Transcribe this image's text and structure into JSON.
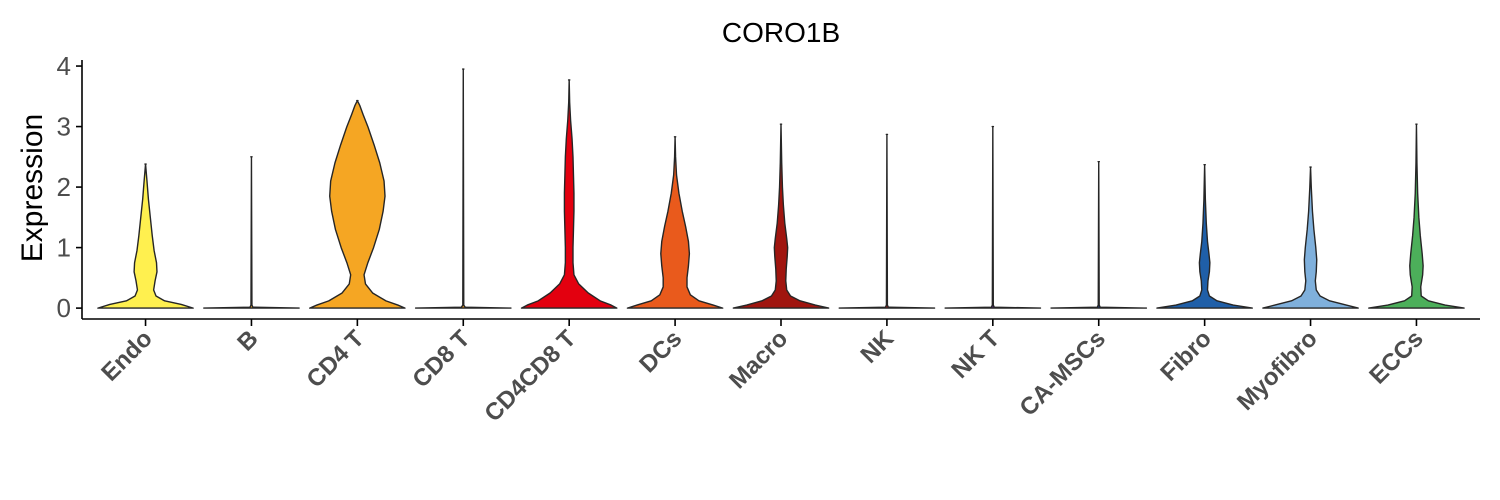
{
  "chart_data": {
    "type": "violin",
    "title": "CORO1B",
    "xlabel": "",
    "ylabel": "Expression",
    "ylim": [
      -0.18,
      4.1
    ],
    "yticks": [
      0,
      1,
      2,
      3,
      4
    ],
    "grid": false,
    "legend": "none",
    "categories": [
      "Endo",
      "B",
      "CD4 T",
      "CD8 T",
      "CD4CD8 T",
      "DCs",
      "Macro",
      "NK",
      "NK T",
      "CA-MSCs",
      "Fibro",
      "Myofibro",
      "ECCs"
    ],
    "colors": [
      "#FFF04F",
      "#F5A623",
      "#F5A623",
      "#E8961E",
      "#E3000F",
      "#E95A1C",
      "#A0150F",
      "#B5181A",
      "#5B2B86",
      "#1F3B86",
      "#1F5FA8",
      "#7FB0DC",
      "#4CAF5A"
    ],
    "violins": [
      {
        "name": "Endo",
        "max": 2.38,
        "profile": [
          [
            0,
            1
          ],
          [
            0.06,
            0.75
          ],
          [
            0.12,
            0.4
          ],
          [
            0.2,
            0.22
          ],
          [
            0.3,
            0.17
          ],
          [
            0.45,
            0.2
          ],
          [
            0.6,
            0.24
          ],
          [
            0.75,
            0.23
          ],
          [
            0.95,
            0.18
          ],
          [
            1.2,
            0.14
          ],
          [
            1.5,
            0.1
          ],
          [
            1.8,
            0.06
          ],
          [
            2.1,
            0.03
          ],
          [
            2.38,
            0
          ]
        ]
      },
      {
        "name": "B",
        "max": 2.5,
        "profile": [
          [
            0,
            1
          ],
          [
            0.015,
            0.03
          ],
          [
            0.05,
            0.01
          ],
          [
            2.5,
            0
          ]
        ]
      },
      {
        "name": "CD4 T",
        "max": 3.43,
        "profile": [
          [
            0,
            1
          ],
          [
            0.05,
            0.85
          ],
          [
            0.12,
            0.6
          ],
          [
            0.25,
            0.32
          ],
          [
            0.4,
            0.17
          ],
          [
            0.55,
            0.14
          ],
          [
            0.75,
            0.22
          ],
          [
            1.0,
            0.34
          ],
          [
            1.3,
            0.46
          ],
          [
            1.6,
            0.54
          ],
          [
            1.85,
            0.58
          ],
          [
            2.1,
            0.56
          ],
          [
            2.4,
            0.47
          ],
          [
            2.7,
            0.35
          ],
          [
            3.0,
            0.22
          ],
          [
            3.2,
            0.12
          ],
          [
            3.35,
            0.05
          ],
          [
            3.43,
            0
          ]
        ]
      },
      {
        "name": "CD8 T",
        "max": 3.95,
        "profile": [
          [
            0,
            1
          ],
          [
            0.015,
            0.04
          ],
          [
            0.05,
            0.01
          ],
          [
            3.95,
            0
          ]
        ]
      },
      {
        "name": "CD4CD8 T",
        "max": 3.77,
        "profile": [
          [
            0,
            1
          ],
          [
            0.05,
            0.88
          ],
          [
            0.12,
            0.65
          ],
          [
            0.25,
            0.4
          ],
          [
            0.4,
            0.2
          ],
          [
            0.55,
            0.1
          ],
          [
            0.75,
            0.08
          ],
          [
            1.0,
            0.08
          ],
          [
            1.3,
            0.09
          ],
          [
            1.6,
            0.1
          ],
          [
            1.9,
            0.1
          ],
          [
            2.2,
            0.09
          ],
          [
            2.5,
            0.08
          ],
          [
            2.8,
            0.06
          ],
          [
            3.1,
            0.03
          ],
          [
            3.4,
            0.01
          ],
          [
            3.77,
            0
          ]
        ]
      },
      {
        "name": "DCs",
        "max": 2.83,
        "profile": [
          [
            0,
            1
          ],
          [
            0.05,
            0.8
          ],
          [
            0.12,
            0.5
          ],
          [
            0.22,
            0.32
          ],
          [
            0.35,
            0.25
          ],
          [
            0.5,
            0.25
          ],
          [
            0.7,
            0.28
          ],
          [
            0.9,
            0.3
          ],
          [
            1.1,
            0.28
          ],
          [
            1.35,
            0.22
          ],
          [
            1.6,
            0.15
          ],
          [
            1.9,
            0.08
          ],
          [
            2.2,
            0.03
          ],
          [
            2.5,
            0.01
          ],
          [
            2.83,
            0
          ]
        ]
      },
      {
        "name": "Macro",
        "max": 3.04,
        "profile": [
          [
            0,
            1
          ],
          [
            0.05,
            0.72
          ],
          [
            0.12,
            0.4
          ],
          [
            0.2,
            0.2
          ],
          [
            0.3,
            0.12
          ],
          [
            0.45,
            0.1
          ],
          [
            0.65,
            0.11
          ],
          [
            0.85,
            0.13
          ],
          [
            1.0,
            0.14
          ],
          [
            1.15,
            0.12
          ],
          [
            1.4,
            0.08
          ],
          [
            1.7,
            0.05
          ],
          [
            2.0,
            0.03
          ],
          [
            2.4,
            0.015
          ],
          [
            3.04,
            0
          ]
        ]
      },
      {
        "name": "NK",
        "max": 2.87,
        "profile": [
          [
            0,
            1
          ],
          [
            0.015,
            0.03
          ],
          [
            0.05,
            0.01
          ],
          [
            2.87,
            0
          ]
        ]
      },
      {
        "name": "NK T",
        "max": 3.0,
        "profile": [
          [
            0,
            1
          ],
          [
            0.015,
            0.03
          ],
          [
            0.05,
            0.01
          ],
          [
            3.0,
            0
          ]
        ]
      },
      {
        "name": "CA-MSCs",
        "max": 2.42,
        "profile": [
          [
            0,
            1
          ],
          [
            0.015,
            0.03
          ],
          [
            0.05,
            0.01
          ],
          [
            2.42,
            0
          ]
        ]
      },
      {
        "name": "Fibro",
        "max": 2.37,
        "profile": [
          [
            0,
            1
          ],
          [
            0.05,
            0.6
          ],
          [
            0.12,
            0.26
          ],
          [
            0.2,
            0.1
          ],
          [
            0.3,
            0.06
          ],
          [
            0.45,
            0.07
          ],
          [
            0.6,
            0.1
          ],
          [
            0.75,
            0.11
          ],
          [
            0.9,
            0.09
          ],
          [
            1.1,
            0.06
          ],
          [
            1.4,
            0.035
          ],
          [
            1.8,
            0.015
          ],
          [
            2.37,
            0
          ]
        ]
      },
      {
        "name": "Myofibro",
        "max": 2.33,
        "profile": [
          [
            0,
            1
          ],
          [
            0.05,
            0.75
          ],
          [
            0.12,
            0.4
          ],
          [
            0.2,
            0.2
          ],
          [
            0.3,
            0.12
          ],
          [
            0.45,
            0.1
          ],
          [
            0.6,
            0.12
          ],
          [
            0.8,
            0.13
          ],
          [
            1.0,
            0.11
          ],
          [
            1.3,
            0.07
          ],
          [
            1.6,
            0.04
          ],
          [
            2.0,
            0.015
          ],
          [
            2.33,
            0
          ]
        ]
      },
      {
        "name": "ECCs",
        "max": 3.04,
        "profile": [
          [
            0,
            1
          ],
          [
            0.05,
            0.6
          ],
          [
            0.12,
            0.25
          ],
          [
            0.2,
            0.1
          ],
          [
            0.35,
            0.09
          ],
          [
            0.55,
            0.13
          ],
          [
            0.7,
            0.14
          ],
          [
            0.9,
            0.12
          ],
          [
            1.2,
            0.08
          ],
          [
            1.5,
            0.05
          ],
          [
            1.9,
            0.025
          ],
          [
            2.4,
            0.01
          ],
          [
            3.04,
            0
          ]
        ]
      }
    ]
  }
}
